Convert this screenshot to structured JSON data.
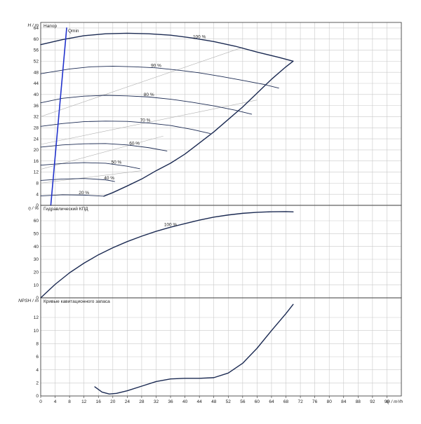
{
  "chart_data": {
    "x_axis": {
      "label": "Q / m³/h",
      "range": [
        0,
        100
      ],
      "ticks": [
        0,
        4,
        8,
        12,
        16,
        20,
        24,
        28,
        32,
        36,
        40,
        44,
        48,
        52,
        56,
        60,
        64,
        68,
        72,
        76,
        80,
        84,
        88,
        92,
        96,
        100
      ]
    },
    "panels": [
      {
        "type": "line",
        "title": "Напор",
        "ylabel": "H / m",
        "ylim": [
          0,
          66
        ],
        "yticks": [
          0,
          4,
          8,
          12,
          16,
          20,
          24,
          28,
          32,
          36,
          40,
          44,
          48,
          52,
          56,
          60,
          64
        ],
        "series": [
          {
            "name": "100 %",
            "x": [
              0,
              6,
              12,
              18,
              24,
              30,
              36,
              42,
              48,
              54,
              60,
              66,
              70
            ],
            "y": [
              58,
              59.8,
              61.2,
              61.9,
              62.1,
              61.9,
              61.4,
              60.4,
              59.1,
              57.4,
              55.3,
              53.4,
              52
            ]
          },
          {
            "name": "90 %",
            "x": [
              0,
              8,
              14,
              20,
              26,
              32,
              38,
              44,
              50,
              56,
              62,
              66
            ],
            "y": [
              47.5,
              49.2,
              50,
              50.2,
              50,
              49.6,
              48.8,
              47.8,
              46.5,
              45.1,
              43.6,
              42.3
            ]
          },
          {
            "name": "80 %",
            "x": [
              0,
              6,
              12,
              18,
              24,
              30,
              36,
              42,
              48,
              54,
              58.5
            ],
            "y": [
              37,
              38.6,
              39.4,
              39.7,
              39.5,
              39.1,
              38.3,
              37.2,
              35.9,
              34.3,
              32.9
            ]
          },
          {
            "name": "70 %",
            "x": [
              0,
              6,
              12,
              18,
              24,
              30,
              36,
              42,
              47
            ],
            "y": [
              28.5,
              29.5,
              30.2,
              30.4,
              30.3,
              29.7,
              28.8,
              27.4,
              25.9
            ]
          },
          {
            "name": "60 %",
            "x": [
              0,
              6,
              12,
              18,
              24,
              30,
              35
            ],
            "y": [
              21,
              21.8,
              22.2,
              22.3,
              21.8,
              20.8,
              19.6
            ]
          },
          {
            "name": "50 %",
            "x": [
              0,
              6,
              12,
              18,
              24,
              27.5
            ],
            "y": [
              14.5,
              15.1,
              15.4,
              15.2,
              14.1,
              13.2
            ]
          },
          {
            "name": "40 %",
            "x": [
              0,
              6,
              12,
              18,
              20.5
            ],
            "y": [
              9,
              9.5,
              9.7,
              9.2,
              8.6
            ]
          },
          {
            "name": "20 %",
            "x": [
              0,
              6,
              12,
              17.5
            ],
            "y": [
              3.4,
              3.8,
              3.7,
              3.3
            ]
          },
          {
            "name": "",
            "x": [
              17.5,
              20,
              24,
              28,
              32,
              36,
              40,
              44,
              48,
              52,
              56,
              60,
              64,
              68,
              70
            ],
            "y": [
              3.3,
              4.6,
              7,
              9.5,
              12.5,
              15.2,
              18.5,
              22.5,
              26.5,
              31,
              35.5,
              40.5,
              45.5,
              50,
              52
            ]
          },
          {
            "name": "Qmin",
            "x": [
              2.8,
              7.2
            ],
            "y": [
              0,
              64
            ]
          }
        ],
        "efficiency_lines": [
          {
            "x": [
              0,
              56
            ],
            "y": [
              32,
              57
            ]
          },
          {
            "x": [
              0,
              60
            ],
            "y": [
              22,
              38
            ]
          },
          {
            "x": [
              0,
              34
            ],
            "y": [
              13,
              25
            ]
          },
          {
            "x": [
              0,
              28
            ],
            "y": [
              8,
              12.5
            ]
          }
        ]
      },
      {
        "type": "line",
        "title": "Гидравлический КПД",
        "ylabel": "η / %",
        "ylim": [
          0,
          72
        ],
        "yticks": [
          0,
          10,
          20,
          30,
          40,
          50,
          60
        ],
        "series": [
          {
            "name": "100 %",
            "x": [
              0,
              4,
              8,
              12,
              16,
              20,
              24,
              28,
              32,
              36,
              40,
              44,
              48,
              52,
              56,
              60,
              64,
              68,
              70
            ],
            "y": [
              0,
              10.5,
              19.5,
              27,
              33.5,
              39,
              43.8,
              48,
              51.8,
              55,
              57.8,
              60.5,
              62.8,
              64.5,
              65.8,
              66.6,
              67,
              67.1,
              66.9
            ]
          }
        ]
      },
      {
        "type": "line",
        "title": "Кривые кавитационного запаса",
        "ylabel": "NPSH / m",
        "ylim": [
          0,
          15
        ],
        "yticks": [
          0,
          2,
          4,
          6,
          8,
          10,
          12
        ],
        "series": [
          {
            "name": "",
            "x": [
              15,
              17,
              19,
              21,
              24,
              28,
              32,
              36,
              40,
              44,
              48,
              52,
              56,
              60,
              64,
              68,
              70
            ],
            "y": [
              1.4,
              0.6,
              0.3,
              0.4,
              0.8,
              1.5,
              2.2,
              2.6,
              2.7,
              2.7,
              2.8,
              3.5,
              5,
              7.3,
              10,
              12.6,
              14
            ]
          }
        ]
      }
    ]
  }
}
